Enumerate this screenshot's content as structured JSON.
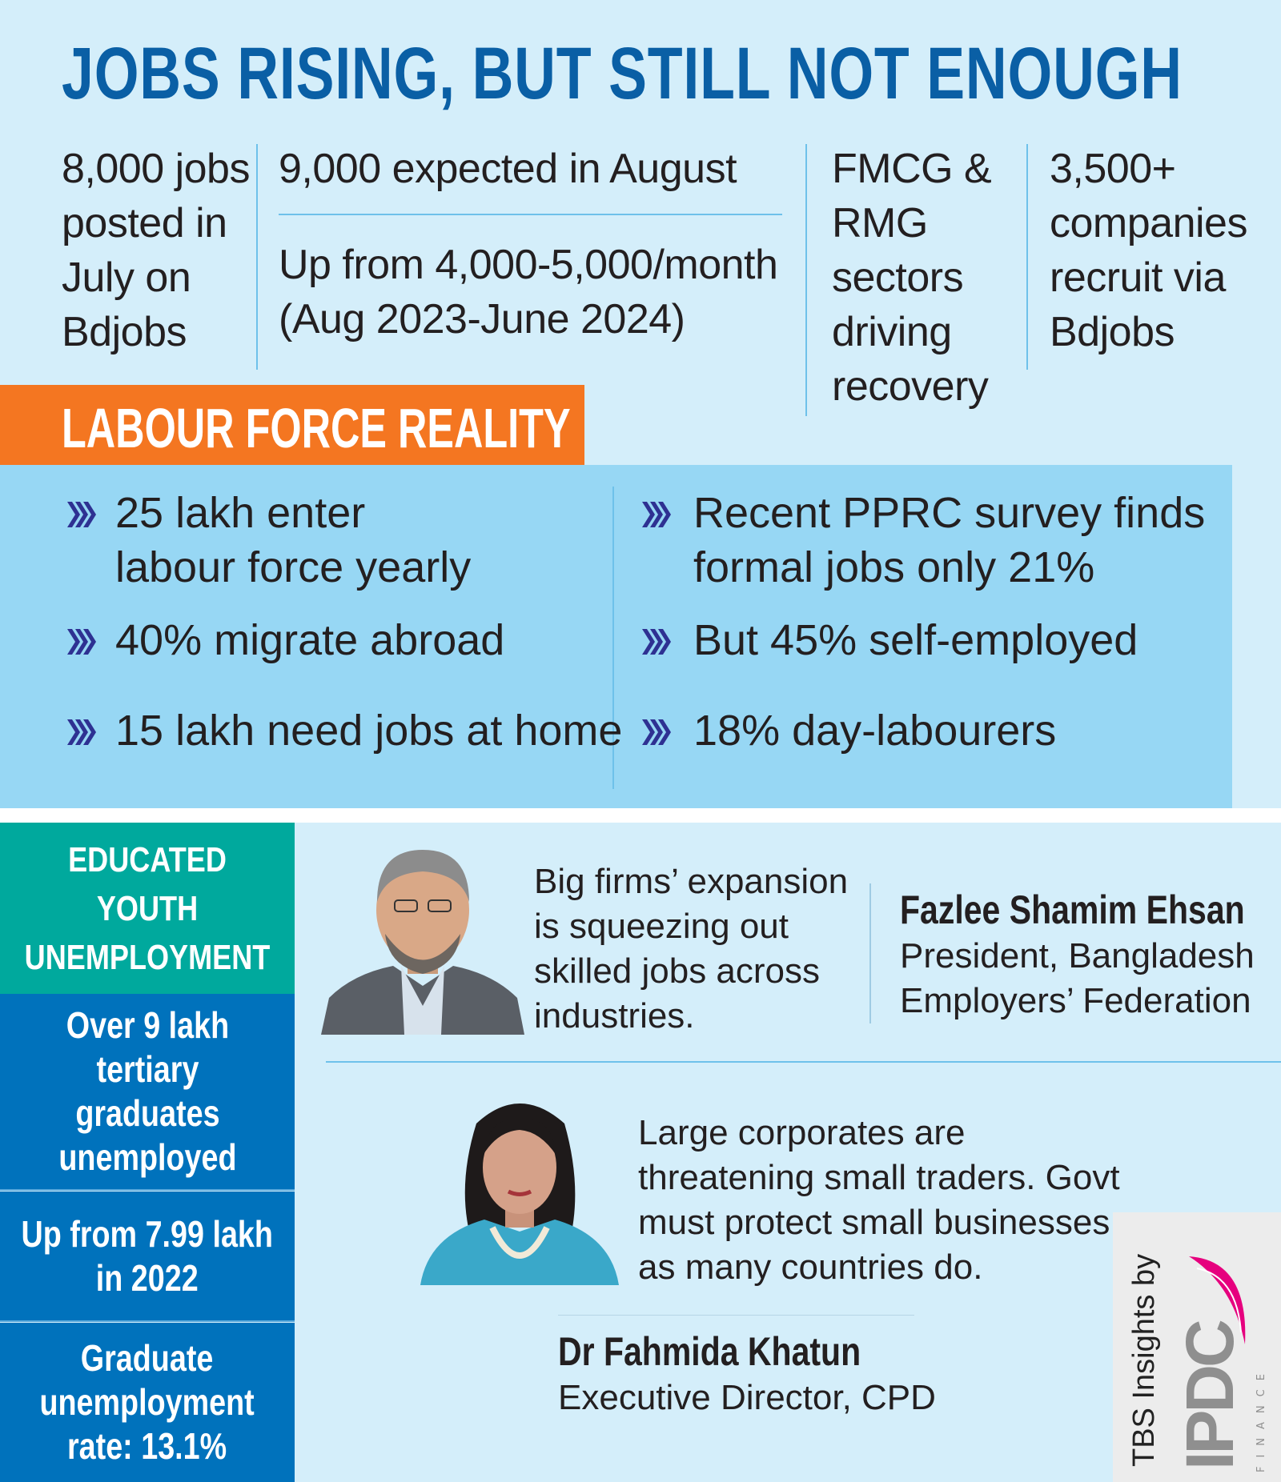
{
  "title": "JOBS RISING, BUT STILL NOT ENOUGH",
  "stats": [
    "8,000 jobs\nposted in\nJuly on\nBdjobs",
    "9,000 expected in August",
    "Up from 4,000-5,000/month\n(Aug 2023-June 2024)",
    "FMCG &\nRMG\nsectors\ndriving\nrecovery",
    "3,500+\ncompanies\nrecruit via\nBdjobs"
  ],
  "labour": {
    "heading": "LABOUR FORCE REALITY",
    "left": [
      "25 lakh enter\nlabour force yearly",
      "40% migrate abroad",
      "15 lakh need jobs at home"
    ],
    "right": [
      "Recent PPRC survey finds\nformal jobs only 21%",
      "But 45% self-employed",
      "18% day-labourers"
    ]
  },
  "youth": {
    "heading": "EDUCATED\nYOUTH\nUNEMPLOYMENT",
    "boxes": [
      "Over 9 lakh\ntertiary\ngraduates\nunemployed",
      "Up from 7.99 lakh\nin 2022",
      "Graduate\nunemployment\nrate: 13.1%"
    ]
  },
  "quotes": [
    {
      "text": "Big firms’ expansion\nis squeezing out\nskilled jobs across\nindustries.",
      "name": "Fazlee Shamim Ehsan",
      "role": "President, Bangladesh\nEmployers’ Federation"
    },
    {
      "text": "Large corporates are\nthreatening small traders. Govt\nmust protect small businesses\nas many countries do.",
      "name": "Dr Fahmida Khatun",
      "role": "Executive Director, CPD"
    }
  ],
  "logo": {
    "credit": "TBS Insights by",
    "brand": "IPDC",
    "sub": "FINANCE"
  },
  "colors": {
    "title": "#0a5fa5",
    "orange": "#f47621",
    "panel": "#97d7f4",
    "teal": "#00a99d",
    "blue": "#0072bc",
    "bg": "#d4eefa",
    "chevron": "#2e3192"
  }
}
